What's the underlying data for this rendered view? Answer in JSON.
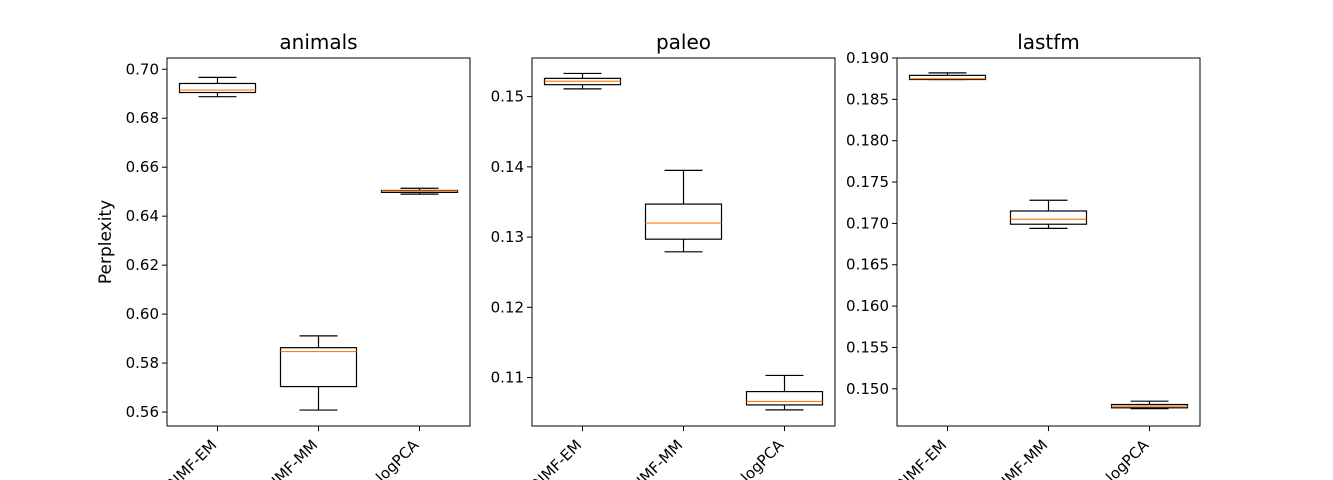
{
  "chart_data": [
    {
      "type": "box",
      "title": "animals",
      "ylabel": "Perplexity",
      "categories": [
        "NMF-EM",
        "NMF-MM",
        "logPCA"
      ],
      "ylim": [
        0.5543,
        0.7046
      ],
      "yticks": [
        "0.56",
        "0.58",
        "0.60",
        "0.62",
        "0.64",
        "0.66",
        "0.68",
        "0.70"
      ],
      "boxes": [
        {
          "whisker_low": 0.6888,
          "q1": 0.6905,
          "median": 0.6915,
          "q3": 0.6942,
          "whisker_high": 0.6967
        },
        {
          "whisker_low": 0.5608,
          "q1": 0.5704,
          "median": 0.5847,
          "q3": 0.5863,
          "whisker_high": 0.5911
        },
        {
          "whisker_low": 0.649,
          "q1": 0.6497,
          "median": 0.6503,
          "q3": 0.6505,
          "whisker_high": 0.6514
        }
      ]
    },
    {
      "type": "box",
      "title": "paleo",
      "ylabel": "",
      "categories": [
        "NMF-EM",
        "NMF-MM",
        "logPCA"
      ],
      "ylim": [
        0.1031,
        0.1555
      ],
      "yticks": [
        "0.11",
        "0.12",
        "0.13",
        "0.14",
        "0.15"
      ],
      "boxes": [
        {
          "whisker_low": 0.1511,
          "q1": 0.1517,
          "median": 0.1522,
          "q3": 0.1526,
          "whisker_high": 0.1533
        },
        {
          "whisker_low": 0.1279,
          "q1": 0.1297,
          "median": 0.132,
          "q3": 0.1347,
          "whisker_high": 0.1395
        },
        {
          "whisker_low": 0.1054,
          "q1": 0.1061,
          "median": 0.1066,
          "q3": 0.108,
          "whisker_high": 0.1103
        }
      ]
    },
    {
      "type": "box",
      "title": "lastfm",
      "ylabel": "",
      "categories": [
        "NMF-EM",
        "NMF-MM",
        "logPCA"
      ],
      "ylim": [
        0.1455,
        0.19
      ],
      "yticks": [
        "0.150",
        "0.155",
        "0.160",
        "0.165",
        "0.170",
        "0.175",
        "0.180",
        "0.185",
        "0.190"
      ],
      "boxes": [
        {
          "whisker_low": 0.1874,
          "q1": 0.1874,
          "median": 0.1875,
          "q3": 0.1879,
          "whisker_high": 0.1882
        },
        {
          "whisker_low": 0.1694,
          "q1": 0.1699,
          "median": 0.1705,
          "q3": 0.1715,
          "whisker_high": 0.1728
        },
        {
          "whisker_low": 0.1476,
          "q1": 0.1477,
          "median": 0.1479,
          "q3": 0.1481,
          "whisker_high": 0.1485
        }
      ]
    }
  ]
}
